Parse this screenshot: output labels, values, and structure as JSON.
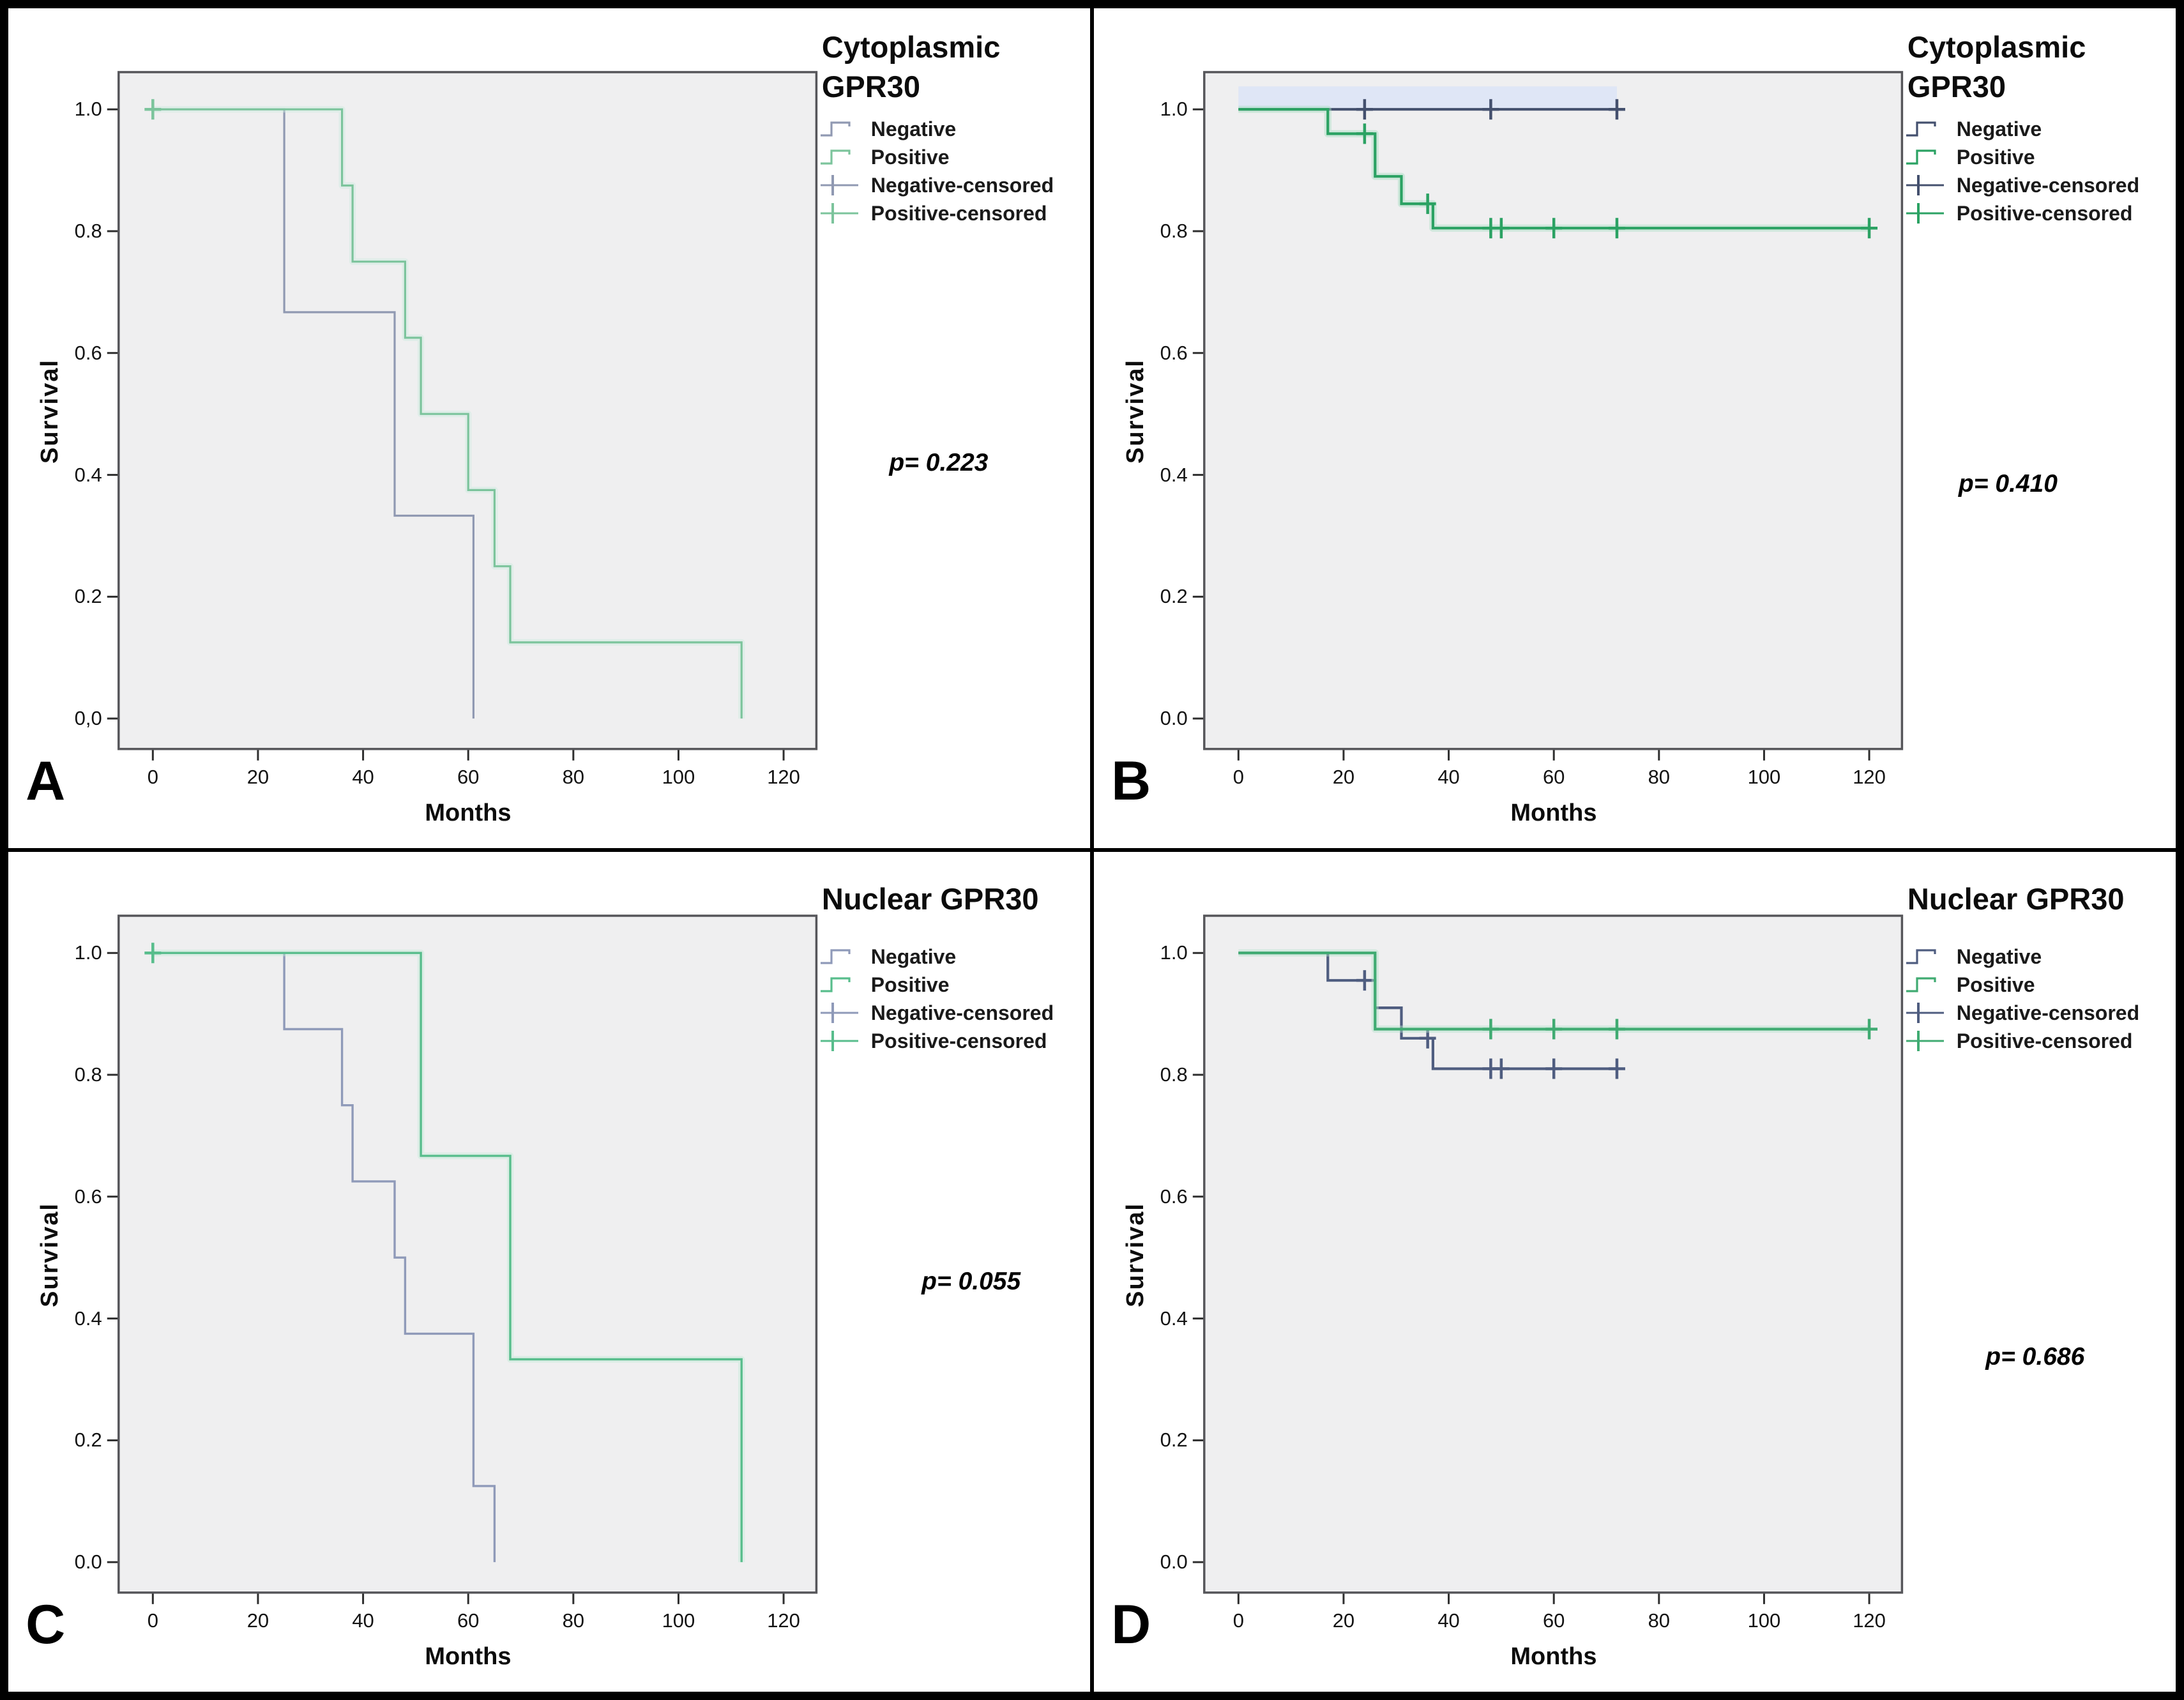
{
  "chart_data": [
    {
      "id": "A",
      "type": "line",
      "subtype": "kaplan-meier-step",
      "corner_label": "A",
      "title": "Cytoplasmic GPR30",
      "title_lines": [
        "Cytoplasmic",
        "GPR30"
      ],
      "p_value_text": "p= 0.223",
      "xlabel": "Months",
      "ylabel": "Survival",
      "xlim": [
        0,
        120
      ],
      "ylim": [
        0.0,
        1.0
      ],
      "grid": false,
      "legend_position": "top-right-outside",
      "x_tick_values": [
        0,
        20,
        40,
        60,
        80,
        100,
        120
      ],
      "x_tick_labels": [
        "0",
        "20",
        "40",
        "60",
        "80",
        "100",
        "120"
      ],
      "y_tick_values": [
        1.0,
        0.8,
        0.6,
        0.4,
        0.2,
        0.0
      ],
      "y_tick_labels": [
        "1.0",
        "0.8",
        "0.6",
        "0.4",
        "0.2",
        "0,0"
      ],
      "legend": [
        {
          "label": "Negative",
          "glyph": "step",
          "series_index": 0
        },
        {
          "label": "Positive",
          "glyph": "step",
          "series_index": 1
        },
        {
          "label": "Negative-censored",
          "glyph": "censor",
          "series_index": 0
        },
        {
          "label": "Positive-censored",
          "glyph": "censor",
          "series_index": 1
        }
      ],
      "series": [
        {
          "name": "Negative",
          "color": "#9099b2",
          "halo_color": null,
          "steps": [
            [
              0,
              1.0
            ],
            [
              25,
              1.0
            ],
            [
              25,
              0.667
            ],
            [
              46,
              0.667
            ],
            [
              46,
              0.333
            ],
            [
              61,
              0.333
            ],
            [
              61,
              0.0
            ]
          ],
          "censors": []
        },
        {
          "name": "Positive",
          "color": "#7cc49c",
          "halo_color": "#cdeadd",
          "steps": [
            [
              0,
              1.0
            ],
            [
              36,
              1.0
            ],
            [
              36,
              0.875
            ],
            [
              38,
              0.875
            ],
            [
              38,
              0.75
            ],
            [
              48,
              0.75
            ],
            [
              48,
              0.625
            ],
            [
              51,
              0.625
            ],
            [
              51,
              0.5
            ],
            [
              60,
              0.5
            ],
            [
              60,
              0.375
            ],
            [
              65,
              0.375
            ],
            [
              65,
              0.25
            ],
            [
              68,
              0.25
            ],
            [
              68,
              0.125
            ],
            [
              112,
              0.125
            ],
            [
              112,
              0.0
            ]
          ],
          "censors": [
            [
              0,
              1.0
            ]
          ]
        }
      ]
    },
    {
      "id": "B",
      "type": "line",
      "subtype": "kaplan-meier-step",
      "corner_label": "B",
      "title": "Cytoplasmic GPR30",
      "title_lines": [
        "Cytoplasmic",
        "GPR30"
      ],
      "p_value_text": "p= 0.410",
      "xlabel": "Months",
      "ylabel": "Survival",
      "xlim": [
        0,
        120
      ],
      "ylim": [
        0.0,
        1.0
      ],
      "grid": false,
      "legend_position": "top-right-outside",
      "x_tick_values": [
        0,
        20,
        40,
        60,
        80,
        100,
        120
      ],
      "x_tick_labels": [
        "0",
        "20",
        "40",
        "60",
        "80",
        "100",
        "120"
      ],
      "y_tick_values": [
        1.0,
        0.8,
        0.6,
        0.4,
        0.2,
        0.0
      ],
      "y_tick_labels": [
        "1.0",
        "0.8",
        "0.6",
        "0.4",
        "0.2",
        "0.0"
      ],
      "highlight_band": {
        "x_range": [
          0,
          72
        ],
        "color": "#dfe6f6"
      },
      "legend": [
        {
          "label": "Negative",
          "glyph": "step",
          "series_index": 0
        },
        {
          "label": "Positive",
          "glyph": "step",
          "series_index": 1
        },
        {
          "label": "Negative-censored",
          "glyph": "censor",
          "series_index": 0
        },
        {
          "label": "Positive-censored",
          "glyph": "censor",
          "series_index": 1
        }
      ],
      "series": [
        {
          "name": "Negative",
          "color": "#44506e",
          "halo_color": null,
          "steps": [
            [
              0,
              1.0
            ],
            [
              72,
              1.0
            ]
          ],
          "censors": [
            [
              24,
              1.0
            ],
            [
              48,
              1.0
            ],
            [
              72,
              1.0
            ]
          ]
        },
        {
          "name": "Positive",
          "color": "#2ba263",
          "halo_color": "#a6dec1",
          "steps": [
            [
              0,
              1.0
            ],
            [
              17,
              1.0
            ],
            [
              17,
              0.96
            ],
            [
              26,
              0.96
            ],
            [
              26,
              0.89
            ],
            [
              31,
              0.89
            ],
            [
              31,
              0.845
            ],
            [
              37,
              0.845
            ],
            [
              37,
              0.805
            ],
            [
              120,
              0.805
            ]
          ],
          "censors": [
            [
              24,
              0.96
            ],
            [
              36,
              0.845
            ],
            [
              48,
              0.805
            ],
            [
              50,
              0.805
            ],
            [
              60,
              0.805
            ],
            [
              72,
              0.805
            ],
            [
              120,
              0.805
            ]
          ]
        }
      ]
    },
    {
      "id": "C",
      "type": "line",
      "subtype": "kaplan-meier-step",
      "corner_label": "C",
      "title": "Nuclear GPR30",
      "title_lines": [
        "Nuclear GPR30"
      ],
      "p_value_text": "p= 0.055",
      "xlabel": "Months",
      "ylabel": "Survival",
      "xlim": [
        0,
        120
      ],
      "ylim": [
        0.0,
        1.0
      ],
      "grid": false,
      "legend_position": "top-right-outside",
      "x_tick_values": [
        0,
        20,
        40,
        60,
        80,
        100,
        120
      ],
      "x_tick_labels": [
        "0",
        "20",
        "40",
        "60",
        "80",
        "100",
        "120"
      ],
      "y_tick_values": [
        1.0,
        0.8,
        0.6,
        0.4,
        0.2,
        0.0
      ],
      "y_tick_labels": [
        "1.0",
        "0.8",
        "0.6",
        "0.4",
        "0.2",
        "0.0"
      ],
      "legend": [
        {
          "label": "Negative",
          "glyph": "step",
          "series_index": 0
        },
        {
          "label": "Positive",
          "glyph": "step",
          "series_index": 1
        },
        {
          "label": "Negative-censored",
          "glyph": "censor",
          "series_index": 0
        },
        {
          "label": "Positive-censored",
          "glyph": "censor",
          "series_index": 1
        }
      ],
      "series": [
        {
          "name": "Negative",
          "color": "#8f9ab9",
          "halo_color": null,
          "steps": [
            [
              0,
              1.0
            ],
            [
              25,
              1.0
            ],
            [
              25,
              0.875
            ],
            [
              36,
              0.875
            ],
            [
              36,
              0.75
            ],
            [
              38,
              0.75
            ],
            [
              38,
              0.625
            ],
            [
              46,
              0.625
            ],
            [
              46,
              0.5
            ],
            [
              48,
              0.5
            ],
            [
              48,
              0.375
            ],
            [
              61,
              0.375
            ],
            [
              61,
              0.125
            ],
            [
              65,
              0.125
            ],
            [
              65,
              0.0
            ]
          ],
          "censors": []
        },
        {
          "name": "Positive",
          "color": "#58bd8c",
          "halo_color": "#c4ead8",
          "steps": [
            [
              0,
              1.0
            ],
            [
              51,
              1.0
            ],
            [
              51,
              0.667
            ],
            [
              68,
              0.667
            ],
            [
              68,
              0.333
            ],
            [
              112,
              0.333
            ],
            [
              112,
              0.0
            ]
          ],
          "censors": [
            [
              0,
              1.0
            ]
          ]
        }
      ]
    },
    {
      "id": "D",
      "type": "line",
      "subtype": "kaplan-meier-step",
      "corner_label": "D",
      "title": "Nuclear GPR30",
      "title_lines": [
        "Nuclear GPR30"
      ],
      "p_value_text": "p= 0.686",
      "xlabel": "Months",
      "ylabel": "Survival",
      "xlim": [
        0,
        120
      ],
      "ylim": [
        0.0,
        1.0
      ],
      "grid": false,
      "legend_position": "top-right-outside",
      "x_tick_values": [
        0,
        20,
        40,
        60,
        80,
        100,
        120
      ],
      "x_tick_labels": [
        "0",
        "20",
        "40",
        "60",
        "80",
        "100",
        "120"
      ],
      "y_tick_values": [
        1.0,
        0.8,
        0.6,
        0.4,
        0.2,
        0.0
      ],
      "y_tick_labels": [
        "1.0",
        "0.8",
        "0.6",
        "0.4",
        "0.2",
        "0.0"
      ],
      "legend": [
        {
          "label": "Negative",
          "glyph": "step",
          "series_index": 0
        },
        {
          "label": "Positive",
          "glyph": "step",
          "series_index": 1
        },
        {
          "label": "Negative-censored",
          "glyph": "censor",
          "series_index": 0
        },
        {
          "label": "Positive-censored",
          "glyph": "censor",
          "series_index": 1
        }
      ],
      "series": [
        {
          "name": "Negative",
          "color": "#4f5d80",
          "halo_color": null,
          "steps": [
            [
              0,
              1.0
            ],
            [
              17,
              1.0
            ],
            [
              17,
              0.955
            ],
            [
              26,
              0.955
            ],
            [
              26,
              0.91
            ],
            [
              31,
              0.91
            ],
            [
              31,
              0.86
            ],
            [
              37,
              0.86
            ],
            [
              37,
              0.81
            ],
            [
              72,
              0.81
            ]
          ],
          "censors": [
            [
              24,
              0.955
            ],
            [
              36,
              0.86
            ],
            [
              48,
              0.81
            ],
            [
              50,
              0.81
            ],
            [
              60,
              0.81
            ],
            [
              72,
              0.81
            ]
          ]
        },
        {
          "name": "Positive",
          "color": "#40ab72",
          "halo_color": "#b2e2ca",
          "steps": [
            [
              0,
              1.0
            ],
            [
              26,
              1.0
            ],
            [
              26,
              0.875
            ],
            [
              120,
              0.875
            ]
          ],
          "censors": [
            [
              48,
              0.875
            ],
            [
              60,
              0.875
            ],
            [
              72,
              0.875
            ],
            [
              120,
              0.875
            ]
          ]
        }
      ]
    }
  ]
}
